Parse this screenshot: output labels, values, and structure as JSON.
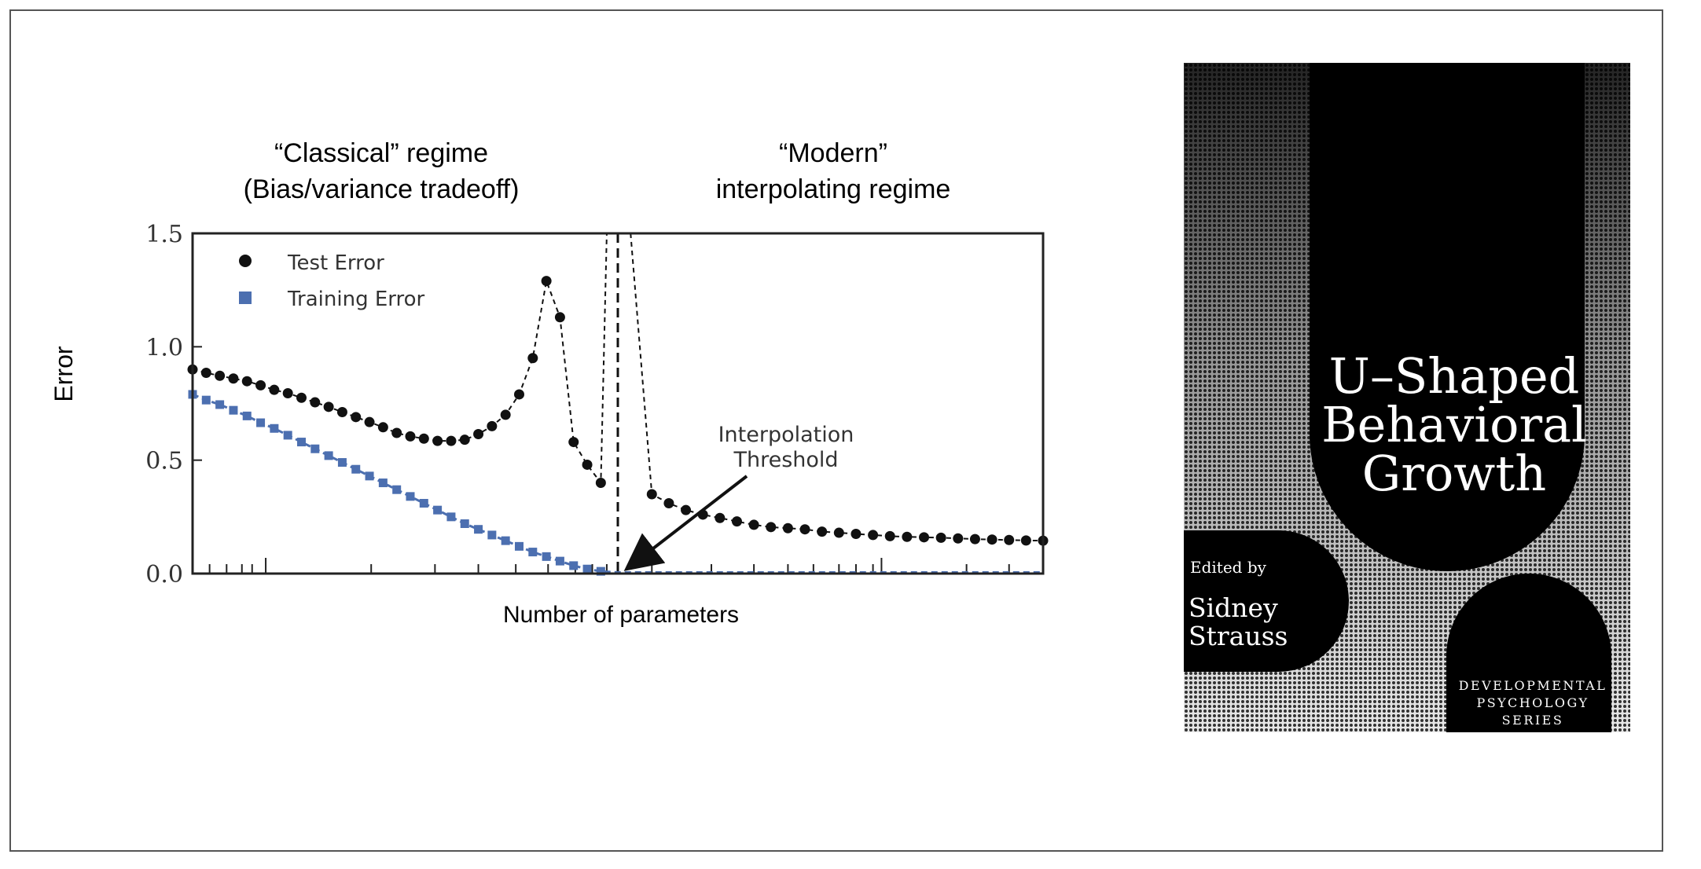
{
  "chart_data": {
    "type": "scatter",
    "title": "",
    "xlabel": "Number of parameters",
    "ylabel": "Error",
    "ylim": [
      0,
      1.5
    ],
    "yticks": [
      "0.0",
      "0.5",
      "1.0",
      "1.5"
    ],
    "grid": false,
    "legend_position": "top-left",
    "regions": [
      {
        "name": "classical",
        "lines": [
          "“Classical” regime",
          "(Bias/variance tradeoff)"
        ]
      },
      {
        "name": "modern",
        "lines": [
          "“Modern”",
          "interpolating regime"
        ]
      }
    ],
    "annotation": {
      "lines": [
        "Interpolation",
        "Threshold"
      ]
    },
    "threshold_x": 0.5,
    "series": [
      {
        "name": "Test Error",
        "marker": "circle",
        "color": "#111111",
        "x": [
          0.0,
          0.016,
          0.032,
          0.048,
          0.064,
          0.08,
          0.096,
          0.112,
          0.128,
          0.144,
          0.16,
          0.176,
          0.192,
          0.208,
          0.224,
          0.24,
          0.256,
          0.272,
          0.288,
          0.304,
          0.32,
          0.336,
          0.352,
          0.368,
          0.384,
          0.4,
          0.416,
          0.432,
          0.448,
          0.464,
          0.48,
          0.54,
          0.56,
          0.58,
          0.6,
          0.62,
          0.64,
          0.66,
          0.68,
          0.7,
          0.72,
          0.74,
          0.76,
          0.78,
          0.8,
          0.82,
          0.84,
          0.86,
          0.88,
          0.9,
          0.92,
          0.94,
          0.96,
          0.98,
          1.0
        ],
        "y": [
          0.9,
          0.885,
          0.872,
          0.86,
          0.848,
          0.83,
          0.81,
          0.795,
          0.775,
          0.755,
          0.735,
          0.712,
          0.69,
          0.668,
          0.645,
          0.62,
          0.605,
          0.595,
          0.585,
          0.585,
          0.59,
          0.615,
          0.65,
          0.7,
          0.79,
          0.95,
          1.29,
          1.13,
          0.58,
          0.48,
          0.4,
          0.35,
          0.31,
          0.28,
          0.26,
          0.245,
          0.23,
          0.215,
          0.205,
          0.2,
          0.195,
          0.185,
          0.18,
          0.175,
          0.17,
          0.165,
          0.162,
          0.16,
          0.158,
          0.155,
          0.152,
          0.15,
          0.148,
          0.146,
          0.145
        ]
      },
      {
        "name": "Training Error",
        "marker": "square",
        "color": "#4c6fb0",
        "x": [
          0.0,
          0.016,
          0.032,
          0.048,
          0.064,
          0.08,
          0.096,
          0.112,
          0.128,
          0.144,
          0.16,
          0.176,
          0.192,
          0.208,
          0.224,
          0.24,
          0.256,
          0.272,
          0.288,
          0.304,
          0.32,
          0.336,
          0.352,
          0.368,
          0.384,
          0.4,
          0.416,
          0.432,
          0.448,
          0.464,
          0.48,
          0.5,
          0.52,
          0.54,
          0.56,
          0.58,
          0.6,
          0.62,
          0.64,
          0.66,
          0.68,
          0.7,
          0.72,
          0.74,
          0.76,
          0.78,
          0.8,
          0.82,
          0.84,
          0.86,
          0.88,
          0.9,
          0.92,
          0.94,
          0.96,
          0.98,
          1.0
        ],
        "y": [
          0.79,
          0.765,
          0.745,
          0.72,
          0.695,
          0.665,
          0.64,
          0.61,
          0.58,
          0.55,
          0.52,
          0.49,
          0.46,
          0.43,
          0.4,
          0.37,
          0.34,
          0.31,
          0.28,
          0.25,
          0.22,
          0.195,
          0.17,
          0.145,
          0.12,
          0.095,
          0.075,
          0.055,
          0.035,
          0.02,
          0.01,
          0.005,
          0.005,
          0.005,
          0.005,
          0.005,
          0.005,
          0.005,
          0.005,
          0.005,
          0.005,
          0.005,
          0.005,
          0.005,
          0.005,
          0.005,
          0.005,
          0.005,
          0.005,
          0.005,
          0.005,
          0.005,
          0.005,
          0.005,
          0.005,
          0.005,
          0.005
        ]
      }
    ]
  },
  "book_cover": {
    "title_lines": [
      "U–Shaped",
      "Behavioral",
      "Growth"
    ],
    "edited_by": "Edited by",
    "editor_lines": [
      "Sidney",
      "Strauss"
    ],
    "series_lines": [
      "DEVELOPMENTAL",
      "PSYCHOLOGY",
      "SERIES"
    ]
  }
}
